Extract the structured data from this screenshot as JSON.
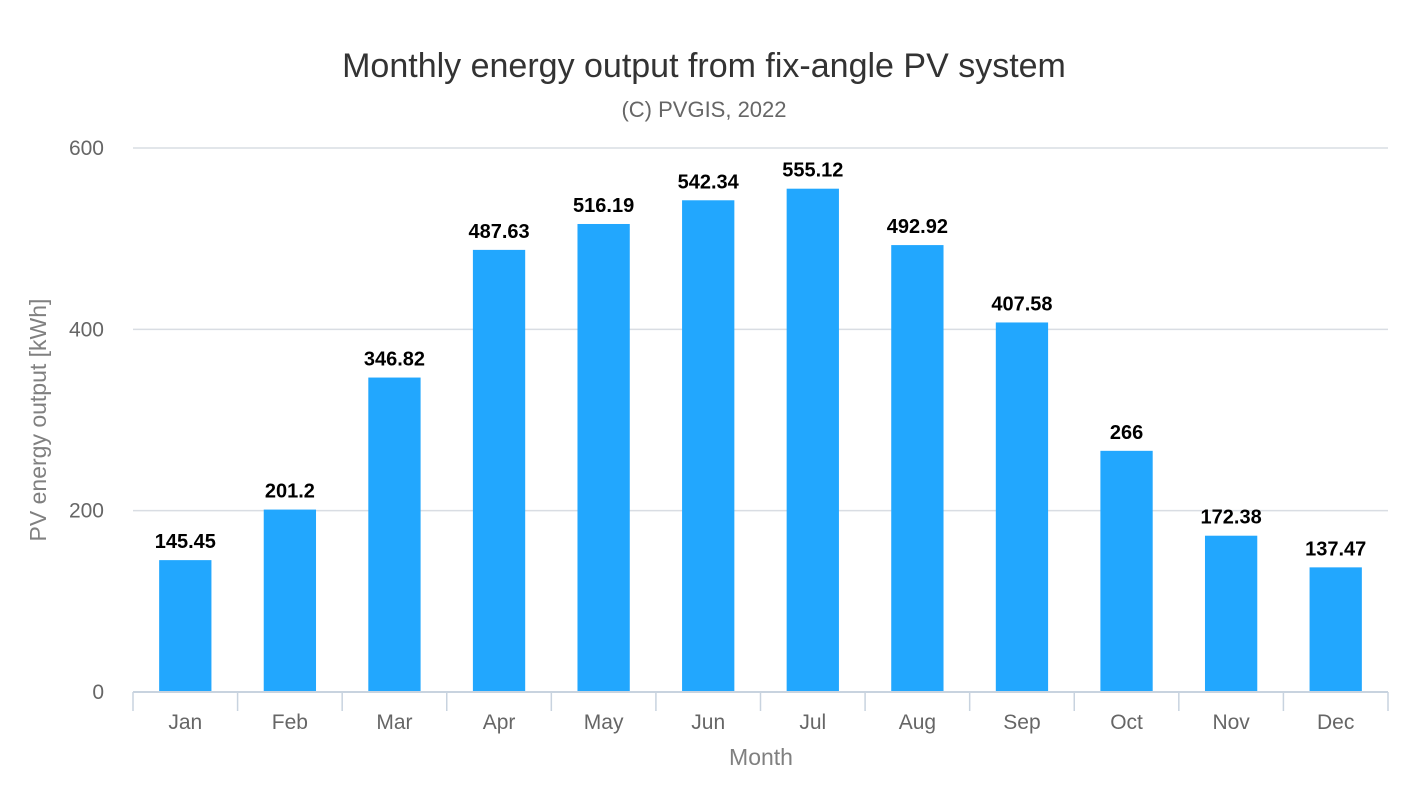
{
  "chart_data": {
    "type": "bar",
    "title": "Monthly energy output from fix-angle PV system",
    "subtitle": "(C) PVGIS, 2022",
    "xlabel": "Month",
    "ylabel": "PV energy output [kWh]",
    "categories": [
      "Jan",
      "Feb",
      "Mar",
      "Apr",
      "May",
      "Jun",
      "Jul",
      "Aug",
      "Sep",
      "Oct",
      "Nov",
      "Dec"
    ],
    "values": [
      145.45,
      201.2,
      346.82,
      487.63,
      516.19,
      542.34,
      555.12,
      492.92,
      407.58,
      266,
      172.38,
      137.47
    ],
    "data_labels": [
      "145.45",
      "201.2",
      "346.82",
      "487.63",
      "516.19",
      "542.34",
      "555.12",
      "492.92",
      "407.58",
      "266",
      "172.38",
      "137.47"
    ],
    "ylim": [
      0,
      600
    ],
    "yticks": [
      0,
      200,
      400,
      600
    ],
    "ytick_labels": [
      "0",
      "200",
      "400",
      "600"
    ],
    "grid": true,
    "legend": "none",
    "colors": {
      "bar": "#22a7fe",
      "grid": "#d9dde3",
      "axis": "#c8d3df",
      "title": "#333333",
      "label": "#666666"
    }
  }
}
